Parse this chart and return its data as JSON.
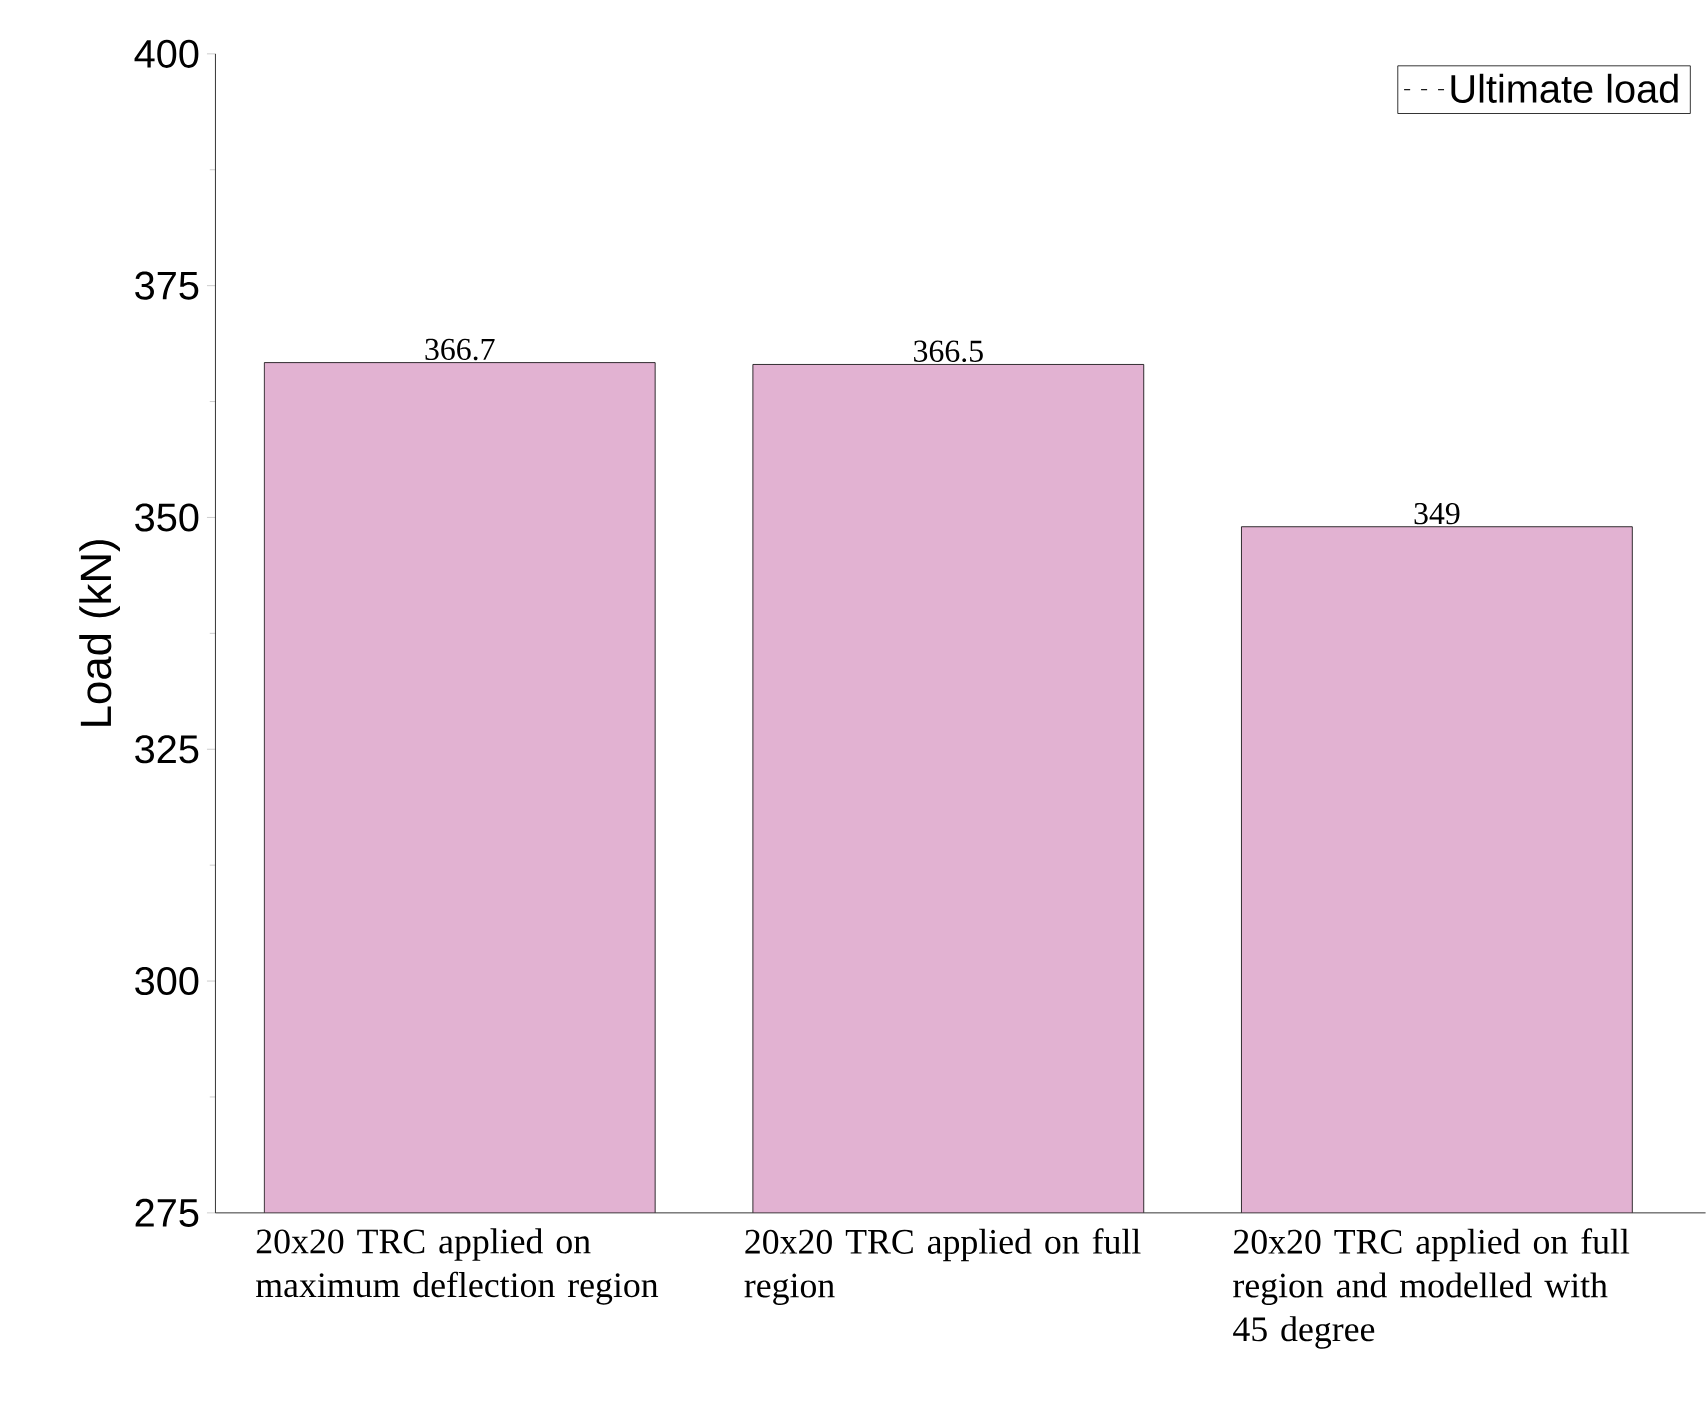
{
  "chart_data": {
    "type": "bar",
    "ylabel": "Load (kN)",
    "categories": [
      "20x20 TRC applied on maximum deflection region",
      "20x20 TRC applied on full region",
      "20x20 TRC applied on full region and modelled with 45 degree"
    ],
    "series": [
      {
        "name": "Ultimate load",
        "color": "#e2b2d2",
        "values": [
          366.7,
          366.5,
          349
        ]
      }
    ],
    "ylim": [
      275,
      400
    ],
    "yticks": [
      275,
      300,
      325,
      350,
      375,
      400
    ],
    "data_labels": true,
    "legend": "top right",
    "grid": false
  }
}
